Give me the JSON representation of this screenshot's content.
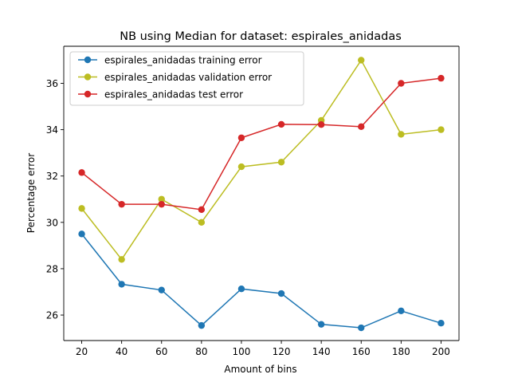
{
  "chart_data": {
    "type": "line",
    "title": "NB using Median for dataset: espirales_anidadas",
    "xlabel": "Amount of bins",
    "ylabel": "Percentage error",
    "x": [
      20,
      40,
      60,
      80,
      100,
      120,
      140,
      160,
      180,
      200
    ],
    "xlim": [
      11,
      209
    ],
    "ylim": [
      24.9,
      37.6
    ],
    "xticks": [
      "20",
      "40",
      "60",
      "80",
      "100",
      "120",
      "140",
      "160",
      "180",
      "200"
    ],
    "yticks": [
      "26",
      "28",
      "30",
      "32",
      "34",
      "36"
    ],
    "grid": false,
    "legend_position": "top-left",
    "series": [
      {
        "name": "espirales_anidadas training error",
        "color": "#1f77b4",
        "values": [
          29.5,
          27.33,
          27.08,
          25.55,
          27.13,
          26.93,
          25.6,
          25.45,
          26.18,
          25.65
        ]
      },
      {
        "name": "espirales_anidadas validation error",
        "color": "#bcbd22",
        "values": [
          30.6,
          28.4,
          31.0,
          30.0,
          32.4,
          32.6,
          34.4,
          37.0,
          33.8,
          34.0
        ]
      },
      {
        "name": "espirales_anidadas test error",
        "color": "#d62728",
        "values": [
          32.15,
          30.78,
          30.78,
          30.55,
          33.65,
          34.23,
          34.22,
          34.13,
          36.0,
          36.22
        ]
      }
    ]
  }
}
